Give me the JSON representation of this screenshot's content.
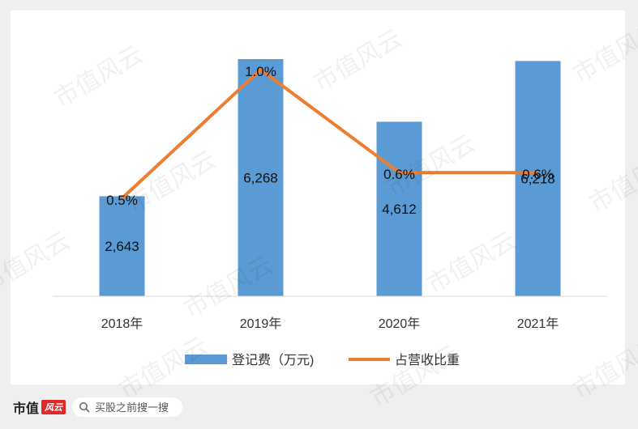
{
  "chart_data": {
    "type": "bar",
    "categories": [
      "2018年",
      "2019年",
      "2020年",
      "2021年"
    ],
    "series": [
      {
        "name": "登记费（万元)",
        "type": "bar",
        "color": "#5b9bd5",
        "values": [
          2643,
          6268,
          4612,
          6218
        ],
        "labels": [
          "2,643",
          "6,268",
          "4,612",
          "6,218"
        ]
      },
      {
        "name": "占营收比重",
        "type": "line",
        "color": "#ed7d31",
        "values": [
          0.5,
          1.0,
          0.6,
          0.6
        ],
        "labels": [
          "0.5%",
          "1.0%",
          "0.6%",
          "0.6%"
        ]
      }
    ],
    "legend_position": "bottom",
    "grid": false
  },
  "watermark": "市值风云",
  "footer": {
    "brand_text": "市值",
    "brand_mark": "风云",
    "search_placeholder": "买股之前搜一搜",
    "search_icon": "search-icon"
  }
}
